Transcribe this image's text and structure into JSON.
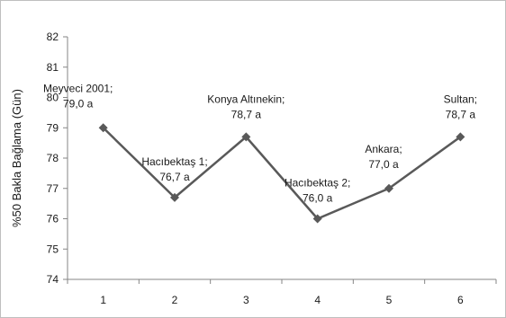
{
  "chart_data": {
    "type": "line",
    "ylabel": "%50 Bakla Bağlama  (Gün)",
    "xlabel": "",
    "ylim": [
      74,
      82
    ],
    "yticks": [
      "74",
      "75",
      "76",
      "77",
      "78",
      "79",
      "80",
      "81",
      "82"
    ],
    "x": [
      "1",
      "2",
      "3",
      "4",
      "5",
      "6"
    ],
    "series": [
      {
        "values": [
          79.0,
          76.7,
          78.7,
          76.0,
          77.0,
          78.7
        ],
        "color": "#595959"
      }
    ],
    "point_labels": [
      {
        "name": "Meyveci 2001;",
        "value": "79,0 a"
      },
      {
        "name": "Hacıbektaş 1;",
        "value": "76,7 a"
      },
      {
        "name": "Konya Altınekin;",
        "value": "78,7 a"
      },
      {
        "name": "Hacıbektaş 2;",
        "value": "76,0 a"
      },
      {
        "name": "Ankara;",
        "value": "77,0 a"
      },
      {
        "name": "Sultan;",
        "value": "78,7 a"
      }
    ],
    "grid": false,
    "marker": "diamond"
  }
}
